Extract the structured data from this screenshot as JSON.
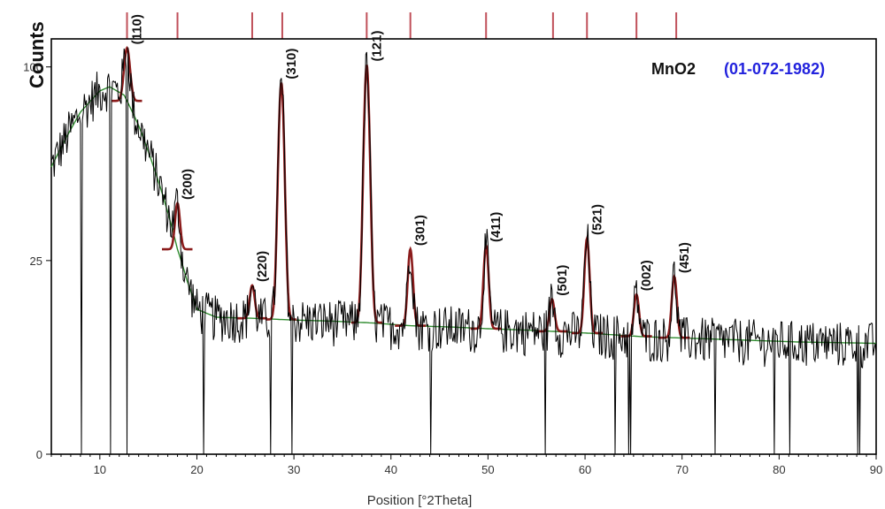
{
  "chart_data": {
    "type": "line",
    "title": "MnO2",
    "reference_code": "(01-072-1982)",
    "xlabel": "Position [°2Theta]",
    "ylabel": "Counts",
    "xlim": [
      5,
      90
    ],
    "y_scale": "sqrt",
    "ylim": [
      0,
      115
    ],
    "x_ticks": [
      10,
      20,
      30,
      40,
      50,
      60,
      70,
      80,
      90
    ],
    "y_ticks": [
      0,
      25,
      100
    ],
    "grid": false,
    "colors": {
      "pattern": "#000000",
      "peaks": "#8b1c1c",
      "reference": "#c0505a",
      "background": "#2e8b2e",
      "code": "#2222dd"
    },
    "reference_lines_x": [
      12.8,
      18.0,
      25.7,
      28.8,
      37.5,
      42.0,
      49.8,
      56.7,
      60.2,
      65.3,
      69.4
    ],
    "peaks": [
      {
        "label": "(110)",
        "x": 12.8,
        "y": 110
      },
      {
        "label": "(200)",
        "x": 18.0,
        "y": 42
      },
      {
        "label": "(220)",
        "x": 25.7,
        "y": 19
      },
      {
        "label": "(310)",
        "x": 28.7,
        "y": 92
      },
      {
        "label": "(121)",
        "x": 37.5,
        "y": 101
      },
      {
        "label": "(301)",
        "x": 42.0,
        "y": 28
      },
      {
        "label": "(411)",
        "x": 49.8,
        "y": 29
      },
      {
        "label": "(501)",
        "x": 56.6,
        "y": 16
      },
      {
        "label": "(521)",
        "x": 60.2,
        "y": 31
      },
      {
        "label": "(002)",
        "x": 65.3,
        "y": 17
      },
      {
        "label": "(451)",
        "x": 69.2,
        "y": 21
      }
    ],
    "background_curve": {
      "x": [
        5,
        8,
        10,
        11,
        12.5,
        14,
        16,
        18,
        19,
        20,
        22,
        26,
        30,
        34,
        38,
        42,
        46,
        50,
        55,
        60,
        63,
        66,
        70,
        74,
        78,
        80,
        82,
        86,
        90
      ],
      "y": [
        55,
        78,
        88,
        90,
        86,
        72,
        50,
        28,
        20,
        14,
        12.5,
        12.3,
        12,
        11.8,
        11.5,
        11,
        10.8,
        10.5,
        10.2,
        9.8,
        9.5,
        9.2,
        9,
        8.8,
        8.6,
        8.5,
        8.4,
        8.3,
        8.2
      ]
    }
  }
}
